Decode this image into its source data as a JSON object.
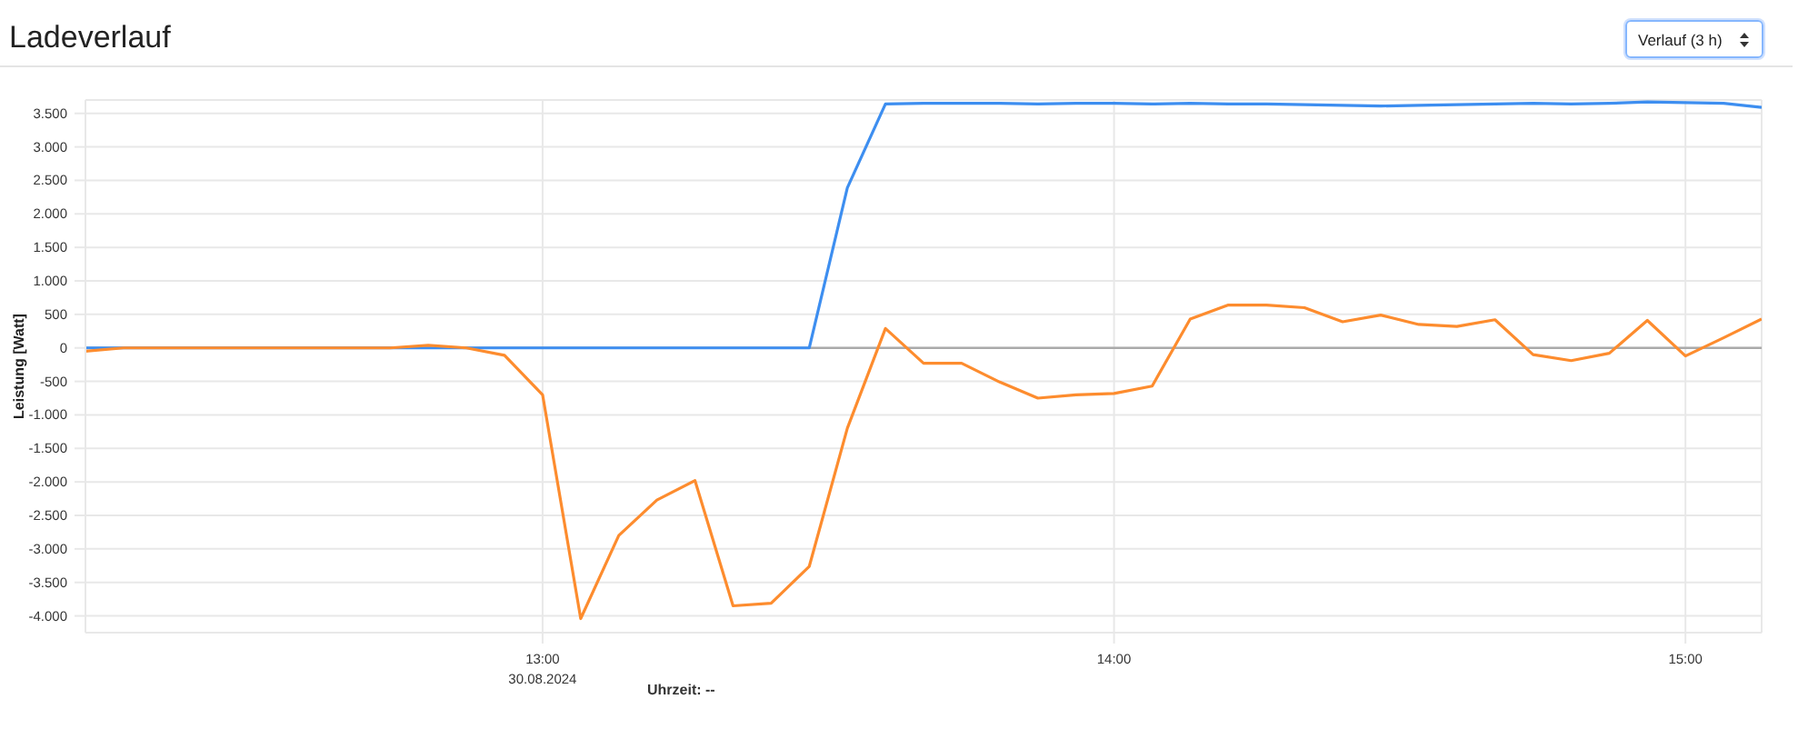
{
  "chart_data": {
    "type": "line",
    "title": "Ladeverlauf",
    "ylabel": "Leistung [Watt]",
    "xlabel": "Uhrzeit: --",
    "annotations": [
      "Verlauf (3 h)"
    ],
    "x": [
      12.2,
      12.2667,
      12.3333,
      12.4,
      12.4667,
      12.5333,
      12.6,
      12.6667,
      12.7333,
      12.8,
      12.8667,
      12.9333,
      13,
      13.0667,
      13.1333,
      13.2,
      13.2667,
      13.3333,
      13.4,
      13.4667,
      13.5333,
      13.6,
      13.6667,
      13.7333,
      13.8,
      13.8667,
      13.9333,
      14,
      14.0667,
      14.1333,
      14.2,
      14.2667,
      14.3333,
      14.4,
      14.4667,
      14.5333,
      14.6,
      14.6667,
      14.7333,
      14.8,
      14.8667,
      14.9333,
      15,
      15.0667,
      15.1333
    ],
    "series": [
      {
        "color": "#3d8ef0",
        "values": [
          0,
          0,
          0,
          0,
          0,
          0,
          0,
          0,
          0,
          0,
          0,
          0,
          0,
          0,
          0,
          0,
          0,
          0,
          0,
          0,
          2390,
          3640,
          3650,
          3650,
          3650,
          3640,
          3650,
          3650,
          3640,
          3650,
          3640,
          3640,
          3630,
          3620,
          3610,
          3620,
          3630,
          3640,
          3650,
          3640,
          3650,
          3670,
          3660,
          3650,
          3590
        ]
      },
      {
        "color": "#fd8c2e",
        "values": [
          -50,
          0,
          0,
          0,
          0,
          0,
          0,
          0,
          0,
          40,
          0,
          -110,
          -700,
          -4040,
          -2800,
          -2270,
          -1980,
          -3850,
          -3810,
          -3260,
          -1200,
          290,
          -230,
          -230,
          -510,
          -750,
          -700,
          -680,
          -570,
          430,
          640,
          640,
          600,
          390,
          490,
          350,
          320,
          420,
          -100,
          -190,
          -80,
          410,
          -120,
          150,
          430
        ]
      }
    ],
    "xlim": [
      12.2,
      15.1333
    ],
    "xticks": [
      {
        "value": 13,
        "label": "13:00\n30.08.2024"
      },
      {
        "value": 14,
        "label": "14:00"
      },
      {
        "value": 15,
        "label": "15:00"
      }
    ],
    "ylim": [
      -4250,
      3700
    ],
    "yticks": [
      {
        "value": 3500,
        "label": "3.500"
      },
      {
        "value": 3000,
        "label": "3.000"
      },
      {
        "value": 2500,
        "label": "2.500"
      },
      {
        "value": 2000,
        "label": "2.000"
      },
      {
        "value": 1500,
        "label": "1.500"
      },
      {
        "value": 1000,
        "label": "1.000"
      },
      500,
      0,
      -500,
      {
        "value": -1000,
        "label": "-1.000"
      },
      {
        "value": -1500,
        "label": "-1.500"
      },
      {
        "value": -2000,
        "label": "-2.000"
      },
      {
        "value": -2500,
        "label": "-2.500"
      },
      {
        "value": -3000,
        "label": "-3.000"
      },
      {
        "value": -3500,
        "label": "-3.500"
      },
      {
        "value": -4000,
        "label": "-4.000"
      }
    ],
    "ref_lines": [
      {
        "axis": "y",
        "value": 0,
        "color": "#aaaaaa"
      }
    ],
    "grid": true,
    "marker": "none",
    "line_style": "solid"
  }
}
